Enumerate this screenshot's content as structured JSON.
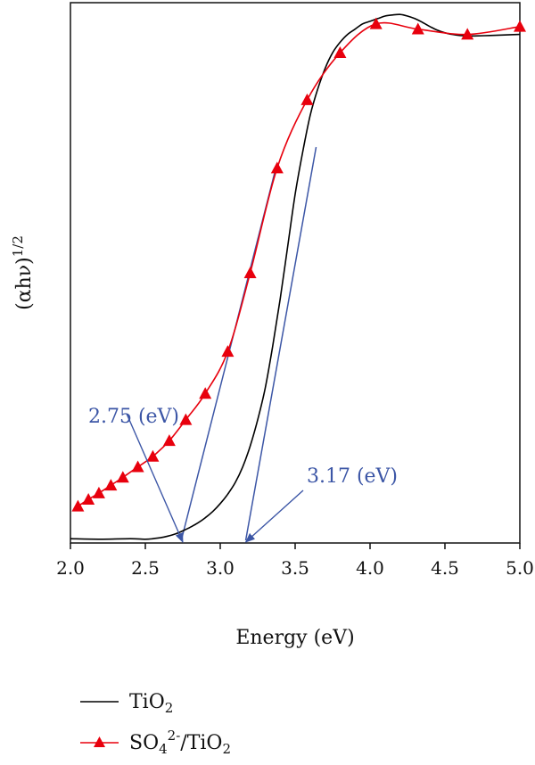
{
  "chart_data": {
    "type": "line",
    "xlabel": "Energy (eV)",
    "ylabel": "(αhν)",
    "ylabel_sup": "1/2",
    "xlim": [
      2.0,
      5.0
    ],
    "ylim": [
      0,
      1
    ],
    "x_ticks": [
      "2.0",
      "2.5",
      "3.0",
      "3.5",
      "4.0",
      "4.5",
      "5.0"
    ],
    "grid": false,
    "legend_position": "bottom-left",
    "series": [
      {
        "name": "TiO",
        "name_sub": "2",
        "color": "#000000",
        "marker": "none",
        "x": [
          2.0,
          2.2,
          2.4,
          2.5,
          2.55,
          2.6,
          2.65,
          2.7,
          2.75,
          2.8,
          2.85,
          2.9,
          2.95,
          3.0,
          3.05,
          3.1,
          3.15,
          3.2,
          3.25,
          3.3,
          3.35,
          3.4,
          3.45,
          3.5,
          3.55,
          3.6,
          3.65,
          3.7,
          3.75,
          3.8,
          3.85,
          3.9,
          3.95,
          4.0,
          4.05,
          4.1,
          4.15,
          4.2,
          4.25,
          4.3,
          4.35,
          4.4,
          4.45,
          4.5,
          4.55,
          4.6,
          4.65,
          4.7,
          4.8,
          4.9,
          5.0
        ],
        "y": [
          0.003,
          0.002,
          0.003,
          0.002,
          0.003,
          0.005,
          0.008,
          0.012,
          0.018,
          0.025,
          0.033,
          0.043,
          0.055,
          0.07,
          0.088,
          0.11,
          0.14,
          0.18,
          0.23,
          0.29,
          0.37,
          0.46,
          0.56,
          0.66,
          0.74,
          0.81,
          0.86,
          0.9,
          0.93,
          0.95,
          0.965,
          0.975,
          0.985,
          0.99,
          0.995,
          1.0,
          1.002,
          1.003,
          1.0,
          0.995,
          0.988,
          0.98,
          0.973,
          0.968,
          0.965,
          0.963,
          0.962,
          0.962,
          0.963,
          0.964,
          0.965
        ]
      },
      {
        "name": "SO",
        "name_sub": "4",
        "name_sup": "2-",
        "name_rest": "/TiO",
        "name_rest_sub": "2",
        "color": "#e8000d",
        "marker": "triangle",
        "x": [
          2.05,
          2.12,
          2.19,
          2.27,
          2.35,
          2.45,
          2.55,
          2.66,
          2.77,
          2.9,
          3.05,
          3.2,
          3.38,
          3.58,
          3.8,
          4.04,
          4.32,
          4.65,
          5.0
        ],
        "y": [
          0.065,
          0.078,
          0.09,
          0.105,
          0.12,
          0.14,
          0.16,
          0.19,
          0.23,
          0.28,
          0.36,
          0.51,
          0.71,
          0.84,
          0.93,
          0.985,
          0.975,
          0.965,
          0.98
        ]
      }
    ],
    "annotations": [
      {
        "text": "2.75 (eV)",
        "value": 2.75
      },
      {
        "text": "3.17 (eV)",
        "value": 3.17
      }
    ],
    "tangent_lines": [
      {
        "x": [
          2.74,
          3.38
        ],
        "y": [
          0.0,
          0.72
        ]
      },
      {
        "x": [
          3.17,
          3.64
        ],
        "y": [
          0.0,
          0.75
        ]
      }
    ]
  }
}
